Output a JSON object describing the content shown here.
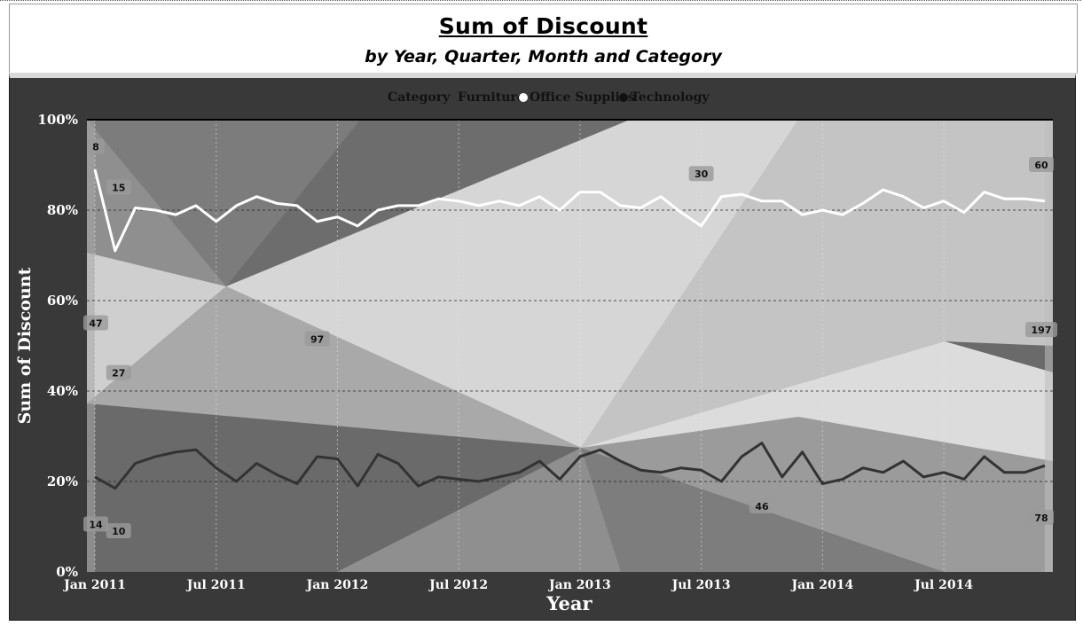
{
  "header": {
    "title": "Sum of Discount",
    "subtitle": "by Year, Quarter, Month and Category"
  },
  "legend": {
    "title": "Category",
    "items": [
      {
        "label": "Furniture",
        "marker": "none"
      },
      {
        "label": "Office Supplies",
        "marker": "white-dot"
      },
      {
        "label": "Technology",
        "marker": "black-dot"
      }
    ]
  },
  "chart_data": {
    "type": "area",
    "stacking": "percent",
    "xlabel": "Year",
    "ylabel": "Sum of Discount",
    "x_ticks": [
      "Jan 2011",
      "Jul 2011",
      "Jan 2012",
      "Jul 2012",
      "Jan 2013",
      "Jul 2013",
      "Jan 2014",
      "Jul 2014"
    ],
    "y_ticks": [
      "0%",
      "20%",
      "40%",
      "60%",
      "80%",
      "100%"
    ],
    "ylim": [
      0,
      100
    ],
    "grid": true,
    "legend_position": "top",
    "months": 48,
    "series": [
      {
        "name": "Technology",
        "line_color": "#333333",
        "boundary_pct": [
          21,
          18.5,
          24,
          25.5,
          26.5,
          27,
          23,
          20,
          24,
          21.5,
          19.5,
          25.5,
          25,
          19,
          26,
          24,
          19,
          21,
          20.5,
          20,
          21,
          22,
          24.5,
          20.5,
          25.5,
          27,
          24.5,
          22.5,
          22,
          23,
          22.5,
          20,
          25.5,
          28.5,
          21,
          26.5,
          19.5,
          20.5,
          23,
          22,
          24.5,
          21,
          22,
          20.5,
          25.5,
          22,
          22,
          23.5
        ]
      },
      {
        "name": "Office Supplies",
        "line_color": "#ffffff",
        "boundary_pct": [
          89,
          71,
          80.5,
          80,
          79,
          81,
          77.5,
          81,
          83,
          81.5,
          81,
          77.5,
          78.5,
          76.5,
          80,
          81,
          81,
          82.5,
          82,
          81,
          82,
          81,
          83,
          80,
          84,
          84,
          81,
          80.5,
          83,
          79.5,
          76.5,
          83,
          83.5,
          82,
          82,
          79,
          80,
          79,
          81.5,
          84.5,
          83,
          80.5,
          82,
          79.5,
          84,
          82.5,
          82.5,
          82
        ]
      },
      {
        "name": "Furniture",
        "boundary_pct": [
          100
        ]
      }
    ],
    "data_labels": [
      {
        "text": "8",
        "month": 0,
        "pct": 94
      },
      {
        "text": "15",
        "month": 1,
        "pct": 85
      },
      {
        "text": "30",
        "month": 30,
        "pct": 88
      },
      {
        "text": "60",
        "month": 47,
        "pct": 90
      },
      {
        "text": "47",
        "month": 0,
        "pct": 55
      },
      {
        "text": "27",
        "month": 1,
        "pct": 44
      },
      {
        "text": "97",
        "month": 11,
        "pct": 51.5
      },
      {
        "text": "197",
        "month": 47,
        "pct": 53.5
      },
      {
        "text": "14",
        "month": 0,
        "pct": 10.5
      },
      {
        "text": "10",
        "month": 1,
        "pct": 9
      },
      {
        "text": "46",
        "month": 33,
        "pct": 14.5
      },
      {
        "text": "78",
        "month": 47,
        "pct": 12
      }
    ]
  }
}
